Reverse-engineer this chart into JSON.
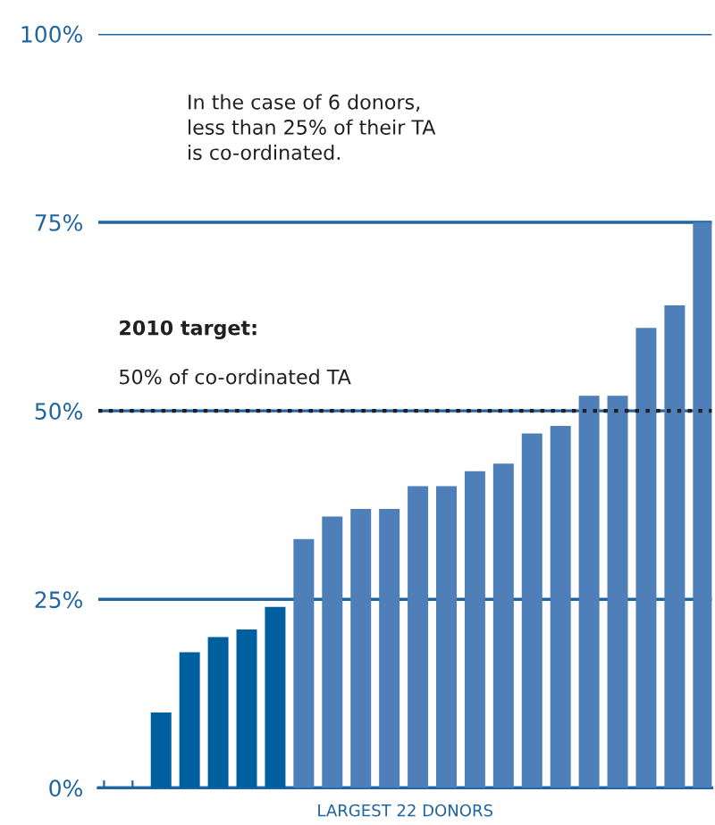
{
  "chart_data": {
    "type": "bar",
    "xlabel": "LARGEST 22 DONORS",
    "categories": [
      null,
      null,
      null,
      null,
      null,
      null,
      null,
      null,
      null,
      null,
      null,
      null,
      null,
      null,
      null,
      null,
      null,
      null,
      null,
      null,
      null,
      null
    ],
    "values": [
      0,
      0,
      10,
      18,
      20,
      21,
      24,
      33,
      36,
      37,
      37,
      40,
      40,
      42,
      43,
      47,
      48,
      52,
      52,
      61,
      64,
      75
    ],
    "colors": [
      "#005f9e",
      "#005f9e",
      "#005f9e",
      "#005f9e",
      "#005f9e",
      "#005f9e",
      "#005f9e",
      "#4f7fb8",
      "#4f7fb8",
      "#4f7fb8",
      "#4f7fb8",
      "#4f7fb8",
      "#4f7fb8",
      "#4f7fb8",
      "#4f7fb8",
      "#4f7fb8",
      "#4f7fb8",
      "#4f7fb8",
      "#4f7fb8",
      "#4f7fb8",
      "#4f7fb8",
      "#4f7fb8"
    ],
    "ylim": [
      0,
      100
    ],
    "yticks": [
      {
        "value": 0,
        "label": "0%"
      },
      {
        "value": 25,
        "label": "25%"
      },
      {
        "value": 50,
        "label": "50%"
      },
      {
        "value": 75,
        "label": "75%"
      },
      {
        "value": 100,
        "label": "100%"
      }
    ],
    "grid": "y",
    "ref_lines": [
      {
        "axis": "y",
        "value": 50,
        "label": "2010 target:",
        "color": "#231f20",
        "line_style": "dotted"
      }
    ],
    "annotations": [
      {
        "text": "50% of co-ordinated TA",
        "y": 50
      },
      "In the case of 6 donors,\nless than 25% of their TA\nis co-ordinated."
    ]
  }
}
